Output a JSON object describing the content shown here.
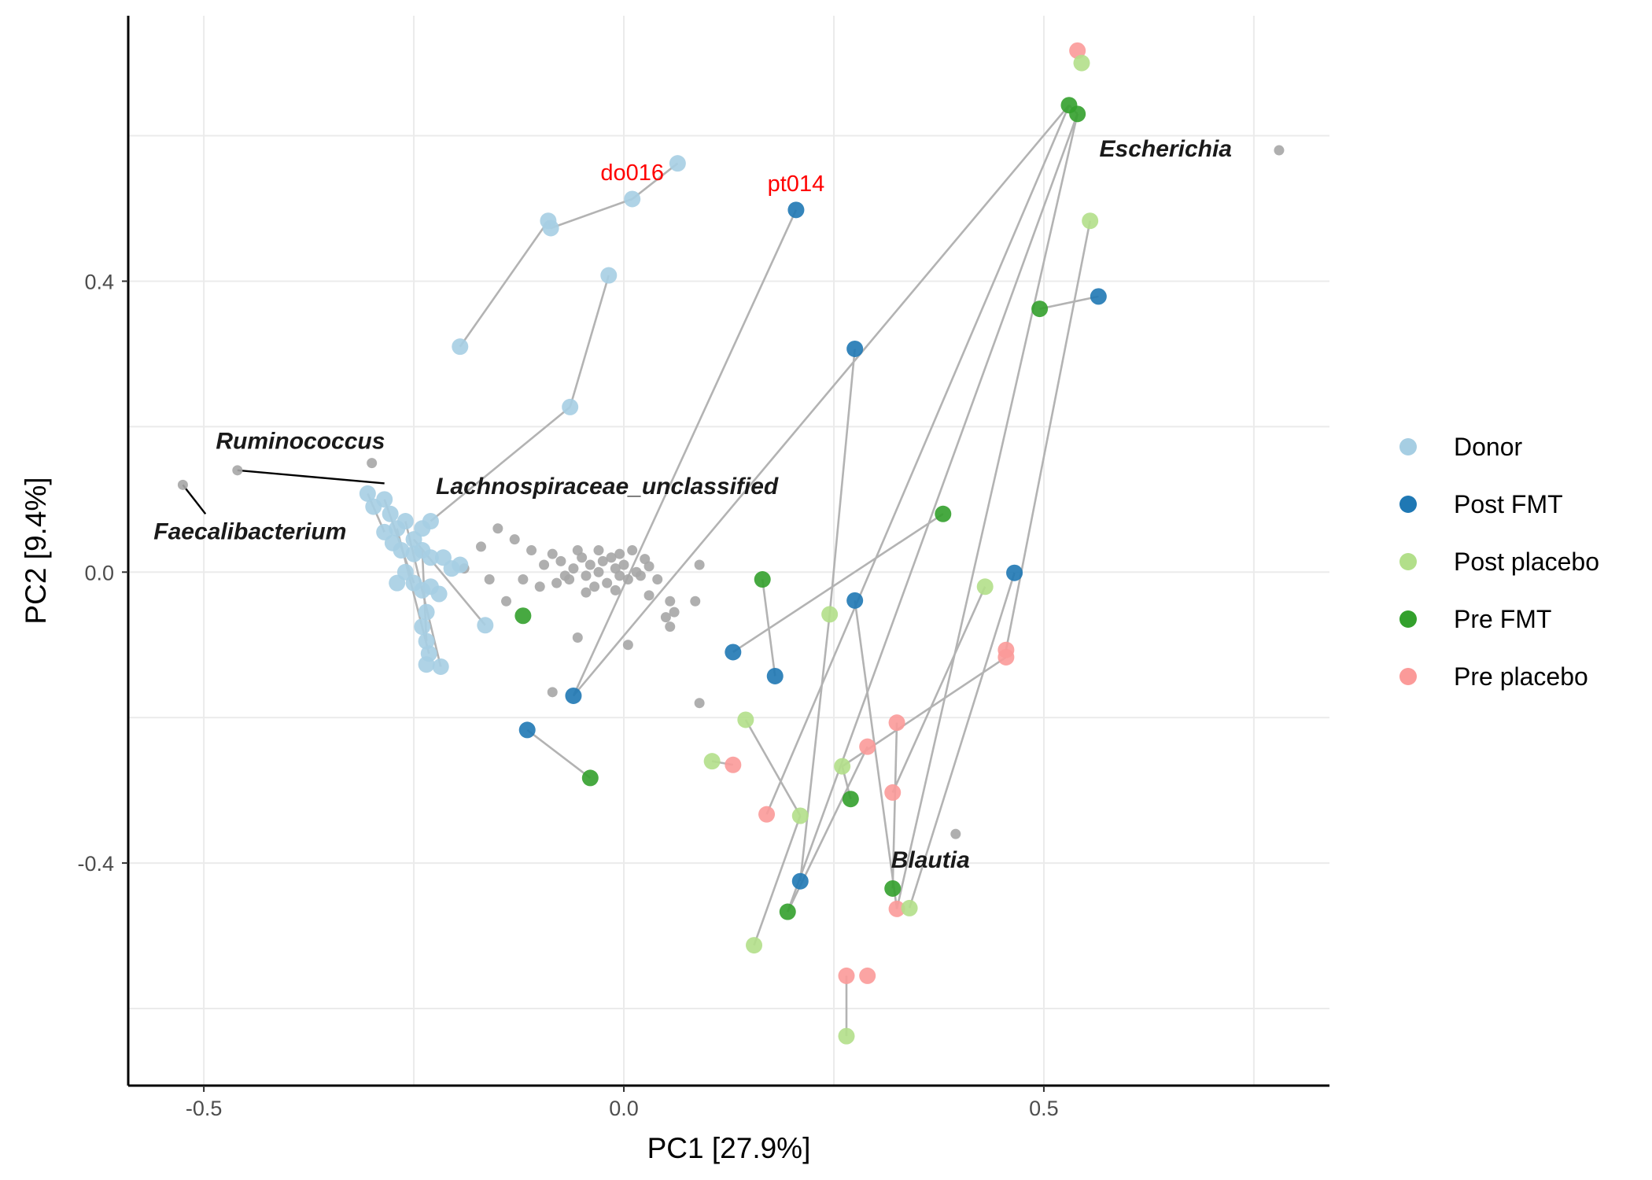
{
  "chart_data": {
    "type": "scatter",
    "title": "",
    "xlabel": "PC1 [27.9%]",
    "ylabel": "PC2 [9.4%]",
    "xlim": [
      -0.59,
      0.84
    ],
    "ylim": [
      -0.706,
      0.765
    ],
    "xticks": [
      -0.5,
      0.0,
      0.5
    ],
    "xtick_labels": [
      "-0.5",
      "0.0",
      "0.5"
    ],
    "yticks": [
      -0.4,
      0.0,
      0.4
    ],
    "ytick_labels": [
      "-0.4",
      "0.0",
      "0.4"
    ],
    "grid": true,
    "legend_position": "right",
    "legend": [
      "Donor",
      "Post FMT",
      "Post placebo",
      "Pre FMT",
      "Pre placebo"
    ],
    "colors": {
      "Donor": "#a6cee3",
      "Post FMT": "#1f78b4",
      "Post placebo": "#b2df8a",
      "Pre FMT": "#33a02c",
      "Pre placebo": "#fb9a99",
      "taxa": "#a6a6a6",
      "segments": "#b3b3b3"
    },
    "series": [
      {
        "name": "Donor",
        "points": [
          [
            0.064,
            0.562
          ],
          [
            0.01,
            0.513
          ],
          [
            -0.09,
            0.483
          ],
          [
            -0.087,
            0.473
          ],
          [
            -0.018,
            0.408
          ],
          [
            -0.195,
            0.31
          ],
          [
            -0.064,
            0.227
          ],
          [
            -0.305,
            0.108
          ],
          [
            -0.285,
            0.1
          ],
          [
            -0.298,
            0.09
          ],
          [
            -0.278,
            0.08
          ],
          [
            -0.27,
            0.06
          ],
          [
            -0.285,
            0.055
          ],
          [
            -0.26,
            0.07
          ],
          [
            -0.24,
            0.06
          ],
          [
            -0.23,
            0.07
          ],
          [
            -0.25,
            0.045
          ],
          [
            -0.275,
            0.04
          ],
          [
            -0.265,
            0.03
          ],
          [
            -0.25,
            0.025
          ],
          [
            -0.24,
            0.03
          ],
          [
            -0.23,
            0.02
          ],
          [
            -0.215,
            0.02
          ],
          [
            -0.205,
            0.005
          ],
          [
            -0.195,
            0.01
          ],
          [
            -0.26,
            0.0
          ],
          [
            -0.27,
            -0.015
          ],
          [
            -0.25,
            -0.015
          ],
          [
            -0.24,
            -0.025
          ],
          [
            -0.23,
            -0.02
          ],
          [
            -0.22,
            -0.03
          ],
          [
            -0.235,
            -0.055
          ],
          [
            -0.24,
            -0.075
          ],
          [
            -0.165,
            -0.073
          ],
          [
            -0.235,
            -0.095
          ],
          [
            -0.232,
            -0.112
          ],
          [
            -0.218,
            -0.13
          ],
          [
            -0.235,
            -0.127
          ]
        ]
      },
      {
        "name": "Post FMT",
        "points": [
          [
            0.205,
            0.498
          ],
          [
            0.275,
            0.307
          ],
          [
            0.565,
            0.379
          ],
          [
            0.465,
            -0.001
          ],
          [
            0.275,
            -0.039
          ],
          [
            0.13,
            -0.11
          ],
          [
            0.18,
            -0.143
          ],
          [
            -0.06,
            -0.17
          ],
          [
            -0.115,
            -0.217
          ],
          [
            0.21,
            -0.425
          ]
        ]
      },
      {
        "name": "Post placebo",
        "points": [
          [
            0.545,
            0.7
          ],
          [
            0.555,
            0.483
          ],
          [
            0.43,
            -0.02
          ],
          [
            0.245,
            -0.058
          ],
          [
            0.145,
            -0.203
          ],
          [
            0.105,
            -0.26
          ],
          [
            0.26,
            -0.267
          ],
          [
            0.21,
            -0.335
          ],
          [
            0.34,
            -0.462
          ],
          [
            0.155,
            -0.513
          ],
          [
            0.265,
            -0.638
          ]
        ]
      },
      {
        "name": "Pre FMT",
        "points": [
          [
            0.53,
            0.642
          ],
          [
            0.54,
            0.63
          ],
          [
            0.495,
            0.362
          ],
          [
            0.38,
            0.08
          ],
          [
            0.165,
            -0.01
          ],
          [
            -0.12,
            -0.06
          ],
          [
            -0.04,
            -0.283
          ],
          [
            0.27,
            -0.312
          ],
          [
            0.32,
            -0.435
          ],
          [
            0.195,
            -0.467
          ]
        ]
      },
      {
        "name": "Pre placebo",
        "points": [
          [
            0.54,
            0.717
          ],
          [
            0.455,
            -0.107
          ],
          [
            0.455,
            -0.117
          ],
          [
            0.325,
            -0.207
          ],
          [
            0.29,
            -0.24
          ],
          [
            0.13,
            -0.265
          ],
          [
            0.32,
            -0.303
          ],
          [
            0.17,
            -0.333
          ],
          [
            0.325,
            -0.463
          ],
          [
            0.265,
            -0.555
          ],
          [
            0.29,
            -0.555
          ]
        ]
      },
      {
        "name": "",
        "points": [
          [
            -0.525,
            0.12
          ],
          [
            -0.46,
            0.14
          ],
          [
            0.78,
            0.58
          ],
          [
            0.395,
            -0.36
          ],
          [
            0.09,
            -0.18
          ],
          [
            -0.3,
            0.15
          ],
          [
            -0.15,
            0.06
          ],
          [
            -0.13,
            0.045
          ],
          [
            -0.17,
            0.035
          ],
          [
            -0.11,
            0.03
          ],
          [
            -0.095,
            0.01
          ],
          [
            -0.085,
            0.025
          ],
          [
            -0.075,
            0.015
          ],
          [
            -0.06,
            0.005
          ],
          [
            -0.05,
            0.02
          ],
          [
            -0.04,
            0.01
          ],
          [
            -0.03,
            0.0
          ],
          [
            -0.025,
            0.015
          ],
          [
            -0.015,
            0.02
          ],
          [
            -0.01,
            0.005
          ],
          [
            -0.005,
            -0.005
          ],
          [
            0.0,
            0.01
          ],
          [
            0.005,
            -0.01
          ],
          [
            0.015,
            0.0
          ],
          [
            0.02,
            -0.005
          ],
          [
            -0.045,
            -0.005
          ],
          [
            -0.065,
            -0.01
          ],
          [
            -0.08,
            -0.015
          ],
          [
            -0.1,
            -0.02
          ],
          [
            -0.02,
            -0.015
          ],
          [
            -0.035,
            -0.02
          ],
          [
            -0.01,
            -0.025
          ],
          [
            0.03,
            0.008
          ],
          [
            0.04,
            -0.01
          ],
          [
            -0.005,
            0.025
          ],
          [
            -0.055,
            0.03
          ],
          [
            -0.07,
            -0.005
          ],
          [
            -0.12,
            -0.01
          ],
          [
            -0.16,
            -0.01
          ],
          [
            -0.19,
            0.005
          ],
          [
            -0.14,
            -0.04
          ],
          [
            -0.055,
            -0.09
          ],
          [
            0.005,
            -0.1
          ],
          [
            0.055,
            -0.04
          ],
          [
            0.06,
            -0.055
          ],
          [
            0.085,
            -0.04
          ],
          [
            0.055,
            -0.075
          ],
          [
            0.09,
            0.01
          ],
          [
            -0.085,
            -0.165
          ],
          [
            0.01,
            0.03
          ],
          [
            -0.03,
            0.03
          ],
          [
            0.025,
            0.018
          ],
          [
            -0.045,
            -0.028
          ],
          [
            0.05,
            -0.062
          ],
          [
            0.03,
            -0.032
          ]
        ]
      }
    ],
    "segments": [
      [
        [
          0.064,
          0.562
        ],
        [
          0.01,
          0.513
        ]
      ],
      [
        [
          0.01,
          0.513
        ],
        [
          -0.087,
          0.473
        ]
      ],
      [
        [
          -0.087,
          0.473
        ],
        [
          -0.09,
          0.483
        ]
      ],
      [
        [
          -0.09,
          0.483
        ],
        [
          -0.195,
          0.31
        ]
      ],
      [
        [
          -0.018,
          0.408
        ],
        [
          -0.064,
          0.227
        ]
      ],
      [
        [
          -0.064,
          0.227
        ],
        [
          -0.23,
          0.07
        ]
      ],
      [
        [
          0.205,
          0.498
        ],
        [
          -0.06,
          -0.17
        ]
      ],
      [
        [
          0.275,
          0.307
        ],
        [
          0.245,
          -0.058
        ]
      ],
      [
        [
          0.245,
          -0.058
        ],
        [
          0.21,
          -0.425
        ]
      ],
      [
        [
          0.565,
          0.379
        ],
        [
          0.495,
          0.362
        ]
      ],
      [
        [
          0.555,
          0.483
        ],
        [
          0.455,
          -0.107
        ]
      ],
      [
        [
          0.53,
          0.642
        ],
        [
          0.54,
          0.63
        ]
      ],
      [
        [
          0.53,
          0.642
        ],
        [
          -0.06,
          -0.17
        ]
      ],
      [
        [
          0.54,
          0.63
        ],
        [
          0.195,
          -0.467
        ]
      ],
      [
        [
          0.53,
          0.642
        ],
        [
          0.17,
          -0.333
        ]
      ],
      [
        [
          0.54,
          0.63
        ],
        [
          0.325,
          -0.463
        ]
      ],
      [
        [
          0.38,
          0.08
        ],
        [
          0.13,
          -0.11
        ]
      ],
      [
        [
          0.165,
          -0.01
        ],
        [
          0.18,
          -0.143
        ]
      ],
      [
        [
          -0.115,
          -0.217
        ],
        [
          -0.04,
          -0.283
        ]
      ],
      [
        [
          0.105,
          -0.26
        ],
        [
          0.13,
          -0.265
        ]
      ],
      [
        [
          0.145,
          -0.203
        ],
        [
          0.21,
          -0.335
        ]
      ],
      [
        [
          0.21,
          -0.335
        ],
        [
          0.155,
          -0.513
        ]
      ],
      [
        [
          0.465,
          -0.001
        ],
        [
          0.34,
          -0.462
        ]
      ],
      [
        [
          0.43,
          -0.02
        ],
        [
          0.32,
          -0.303
        ]
      ],
      [
        [
          0.455,
          -0.117
        ],
        [
          0.26,
          -0.267
        ]
      ],
      [
        [
          0.26,
          -0.267
        ],
        [
          0.27,
          -0.312
        ]
      ],
      [
        [
          0.275,
          -0.039
        ],
        [
          0.325,
          -0.463
        ]
      ],
      [
        [
          0.29,
          -0.24
        ],
        [
          0.195,
          -0.467
        ]
      ],
      [
        [
          0.325,
          -0.207
        ],
        [
          0.32,
          -0.435
        ]
      ],
      [
        [
          0.265,
          -0.555
        ],
        [
          0.265,
          -0.638
        ]
      ],
      [
        [
          -0.305,
          0.108
        ],
        [
          -0.285,
          0.055
        ]
      ],
      [
        [
          -0.285,
          0.1
        ],
        [
          -0.25,
          -0.015
        ]
      ],
      [
        [
          -0.27,
          0.06
        ],
        [
          -0.232,
          -0.112
        ]
      ],
      [
        [
          -0.26,
          0.07
        ],
        [
          -0.218,
          -0.13
        ]
      ],
      [
        [
          -0.25,
          0.045
        ],
        [
          -0.165,
          -0.073
        ]
      ],
      [
        [
          -0.24,
          0.03
        ],
        [
          -0.235,
          -0.095
        ]
      ]
    ],
    "taxa_labels": [
      {
        "text": "Ruminococcus",
        "x": -0.385,
        "y": 0.178
      },
      {
        "text": "Lachnospiraceae_unclassified",
        "x": -0.02,
        "y": 0.116
      },
      {
        "text": "Faecalibacterium",
        "x": -0.445,
        "y": 0.054
      },
      {
        "text": "Escherichia",
        "x": 0.645,
        "y": 0.58
      },
      {
        "text": "Blautia",
        "x": 0.365,
        "y": -0.398
      }
    ],
    "taxa_leaders": [
      [
        [
          -0.525,
          0.12
        ],
        [
          -0.498,
          0.08
        ]
      ],
      [
        [
          -0.46,
          0.14
        ],
        [
          -0.285,
          0.122
        ]
      ]
    ],
    "sample_labels": [
      {
        "text": "do016",
        "x": 0.01,
        "y": 0.547
      },
      {
        "text": "pt014",
        "x": 0.205,
        "y": 0.532
      }
    ]
  }
}
